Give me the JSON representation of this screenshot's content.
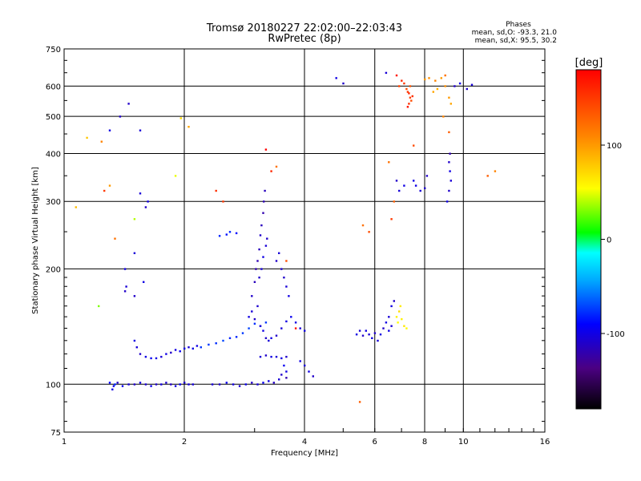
{
  "chart_data": {
    "type": "scatter",
    "title": "Tromsø 20180227 22:02:00–22:03:43",
    "subtitle": "RwPretec (8p)",
    "xlabel": "Frequency [MHz]",
    "ylabel": "Stationary phase Virtual Height [km]",
    "x_scale": "log",
    "y_scale": "log",
    "xlim": [
      1,
      16
    ],
    "ylim": [
      75,
      750
    ],
    "x_ticks": [
      1,
      2,
      4,
      6,
      8,
      10,
      16
    ],
    "y_ticks": [
      75,
      100,
      200,
      300,
      400,
      500,
      600,
      750
    ],
    "x_tick_labels": [
      "1",
      "2",
      "4",
      "6",
      "8",
      "10",
      "16"
    ],
    "y_tick_labels": [
      "75",
      "100",
      "200",
      "300",
      "400",
      "500",
      "600",
      "750"
    ],
    "grid": true,
    "stats": {
      "header": "Phases",
      "line_o": "mean, sd,O:  -93.3, 21.0",
      "line_x": "mean, sd,X:  95.5, 30.2"
    },
    "colorbar": {
      "label": "[deg]",
      "range": [
        -180,
        180
      ],
      "ticks": [
        100,
        0,
        -100
      ],
      "tick_labels": [
        "100",
        "0",
        "-100"
      ]
    },
    "series": [
      {
        "points": [
          [
            1.33,
            99,
            -100
          ],
          [
            1.36,
            101,
            -110
          ],
          [
            1.4,
            99,
            -95
          ],
          [
            1.45,
            100,
            -105
          ],
          [
            1.5,
            100,
            -110
          ],
          [
            1.55,
            101,
            -100
          ],
          [
            1.6,
            100,
            -108
          ],
          [
            1.65,
            99,
            -96
          ],
          [
            1.7,
            100,
            -110
          ],
          [
            1.75,
            100,
            -102
          ],
          [
            1.8,
            101,
            -106
          ],
          [
            1.85,
            100,
            -112
          ],
          [
            1.9,
            99,
            -100
          ],
          [
            1.95,
            100,
            -95
          ],
          [
            2.0,
            101,
            -108
          ],
          [
            2.05,
            100,
            -102
          ],
          [
            2.1,
            100,
            -104
          ],
          [
            1.3,
            101,
            -90
          ],
          [
            1.32,
            97,
            -100
          ],
          [
            1.34,
            100,
            -80
          ],
          [
            2.35,
            100,
            -104
          ],
          [
            2.45,
            100,
            -110
          ],
          [
            2.55,
            101,
            -96
          ],
          [
            2.65,
            100,
            -102
          ],
          [
            2.75,
            99,
            -105
          ],
          [
            2.85,
            100,
            -98
          ],
          [
            2.95,
            101,
            -110
          ],
          [
            3.05,
            100,
            -103
          ],
          [
            3.15,
            101,
            -95
          ],
          [
            3.25,
            102,
            -100
          ],
          [
            3.35,
            101,
            -112
          ],
          [
            3.45,
            103,
            -105
          ],
          [
            3.5,
            106,
            -110
          ],
          [
            3.6,
            108,
            -100
          ],
          [
            3.55,
            112,
            -95
          ],
          [
            3.6,
            104,
            -120
          ],
          [
            1.5,
            130,
            -100
          ],
          [
            1.52,
            125,
            -105
          ],
          [
            1.55,
            120,
            -110
          ],
          [
            1.6,
            118,
            -100
          ],
          [
            1.65,
            117,
            -95
          ],
          [
            1.7,
            117,
            -100
          ],
          [
            1.75,
            118,
            -105
          ],
          [
            1.8,
            120,
            -100
          ],
          [
            1.85,
            121,
            -110
          ],
          [
            1.9,
            123,
            -100
          ],
          [
            1.95,
            122,
            -95
          ],
          [
            2.0,
            124,
            -100
          ],
          [
            2.05,
            125,
            -105
          ],
          [
            2.1,
            124,
            -100
          ],
          [
            2.15,
            126,
            -100
          ],
          [
            2.2,
            125,
            -75
          ],
          [
            2.3,
            127,
            -75
          ],
          [
            2.4,
            128,
            -78
          ],
          [
            2.5,
            130,
            -70
          ],
          [
            2.6,
            132,
            -80
          ],
          [
            2.7,
            133,
            -80
          ],
          [
            2.8,
            136,
            -75
          ],
          [
            2.9,
            140,
            -72
          ],
          [
            3.0,
            144,
            -78
          ],
          [
            3.1,
            142,
            -80
          ],
          [
            3.2,
            145,
            -75
          ],
          [
            2.9,
            150,
            -100
          ],
          [
            2.95,
            155,
            -105
          ],
          [
            3.0,
            148,
            -110
          ],
          [
            3.05,
            160,
            -108
          ],
          [
            3.1,
            142,
            -105
          ],
          [
            3.15,
            138,
            -100
          ],
          [
            3.2,
            132,
            -110
          ],
          [
            3.25,
            130,
            -105
          ],
          [
            3.3,
            132,
            -100
          ],
          [
            3.4,
            134,
            -110
          ],
          [
            3.5,
            140,
            -105
          ],
          [
            3.6,
            146,
            -100
          ],
          [
            3.7,
            150,
            -95
          ],
          [
            3.8,
            145,
            -100
          ],
          [
            3.9,
            140,
            -105
          ],
          [
            4.0,
            138,
            -100
          ],
          [
            2.95,
            170,
            -110
          ],
          [
            3.0,
            185,
            -115
          ],
          [
            3.02,
            200,
            -120
          ],
          [
            3.05,
            210,
            -118
          ],
          [
            3.08,
            225,
            -115
          ],
          [
            3.1,
            245,
            -110
          ],
          [
            3.12,
            260,
            -115
          ],
          [
            3.15,
            280,
            -120
          ],
          [
            3.16,
            300,
            -118
          ],
          [
            3.18,
            320,
            -115
          ],
          [
            3.12,
            200,
            -105
          ],
          [
            3.08,
            190,
            -110
          ],
          [
            3.15,
            215,
            -100
          ],
          [
            3.2,
            230,
            -105
          ],
          [
            3.22,
            240,
            -110
          ],
          [
            3.4,
            210,
            -110
          ],
          [
            3.45,
            220,
            -105
          ],
          [
            3.5,
            200,
            -108
          ],
          [
            3.55,
            190,
            -110
          ],
          [
            3.6,
            180,
            -105
          ],
          [
            3.65,
            170,
            -100
          ],
          [
            3.1,
            118,
            -105
          ],
          [
            3.2,
            119,
            -110
          ],
          [
            3.3,
            118,
            -100
          ],
          [
            3.4,
            118,
            -105
          ],
          [
            3.5,
            117,
            -100
          ],
          [
            3.6,
            118,
            -110
          ],
          [
            2.45,
            244,
            -80
          ],
          [
            2.55,
            246,
            -85
          ],
          [
            2.6,
            250,
            -80
          ],
          [
            2.7,
            248,
            -90
          ],
          [
            3.9,
            115,
            -100
          ],
          [
            4.0,
            112,
            -105
          ],
          [
            4.1,
            108,
            -100
          ],
          [
            4.2,
            105,
            -110
          ],
          [
            5.4,
            135,
            -100
          ],
          [
            5.5,
            138,
            -105
          ],
          [
            5.6,
            134,
            -110
          ],
          [
            5.7,
            138,
            -100
          ],
          [
            5.8,
            135,
            -105
          ],
          [
            5.9,
            132,
            -100
          ],
          [
            6.0,
            136,
            -110
          ],
          [
            6.1,
            130,
            -105
          ],
          [
            6.2,
            135,
            -100
          ],
          [
            6.3,
            140,
            -110
          ],
          [
            6.4,
            145,
            -100
          ],
          [
            6.5,
            150,
            -105
          ],
          [
            6.6,
            160,
            -100
          ],
          [
            6.7,
            165,
            -110
          ],
          [
            6.5,
            138,
            -100
          ],
          [
            6.6,
            142,
            -105
          ],
          [
            6.8,
            150,
            60
          ],
          [
            6.85,
            145,
            55
          ],
          [
            6.9,
            155,
            70
          ],
          [
            7.0,
            148,
            60
          ],
          [
            7.1,
            142,
            65
          ],
          [
            7.2,
            140,
            55
          ],
          [
            6.95,
            160,
            62
          ],
          [
            7.2,
            590,
            140
          ],
          [
            7.25,
            580,
            150
          ],
          [
            7.3,
            575,
            160
          ],
          [
            7.35,
            560,
            145
          ],
          [
            7.3,
            540,
            155
          ],
          [
            7.25,
            530,
            170
          ],
          [
            7.4,
            550,
            140
          ],
          [
            7.35,
            600,
            135
          ],
          [
            7.1,
            610,
            150
          ],
          [
            7.0,
            620,
            160
          ],
          [
            6.8,
            640,
            170
          ],
          [
            6.9,
            600,
            145
          ],
          [
            7.45,
            565,
            155
          ],
          [
            8.0,
            625,
            100
          ],
          [
            8.2,
            630,
            105
          ],
          [
            8.5,
            620,
            110
          ],
          [
            8.8,
            630,
            100
          ],
          [
            9.0,
            600,
            105
          ],
          [
            8.4,
            580,
            95
          ],
          [
            8.6,
            590,
            90
          ],
          [
            9.2,
            560,
            100
          ],
          [
            9.3,
            540,
            95
          ],
          [
            9.0,
            640,
            120
          ],
          [
            9.2,
            380,
            -110
          ],
          [
            9.25,
            360,
            -100
          ],
          [
            9.3,
            340,
            -105
          ],
          [
            9.2,
            320,
            -110
          ],
          [
            9.1,
            300,
            -100
          ],
          [
            9.25,
            400,
            -120
          ],
          [
            7.6,
            330,
            -100
          ],
          [
            7.8,
            320,
            -105
          ],
          [
            8.0,
            325,
            -110
          ],
          [
            7.5,
            340,
            -100
          ],
          [
            8.1,
            350,
            -110
          ],
          [
            6.8,
            340,
            -110
          ],
          [
            7.1,
            330,
            -100
          ],
          [
            6.9,
            320,
            -105
          ],
          [
            9.5,
            600,
            -110
          ],
          [
            9.8,
            610,
            -100
          ],
          [
            10.5,
            605,
            -105
          ],
          [
            10.2,
            590,
            -110
          ],
          [
            4.8,
            630,
            -100
          ],
          [
            5.0,
            610,
            -110
          ],
          [
            6.4,
            650,
            -105
          ],
          [
            1.45,
            540,
            -110
          ],
          [
            1.3,
            460,
            -100
          ],
          [
            1.55,
            460,
            -105
          ],
          [
            1.38,
            500,
            -110
          ],
          [
            1.62,
            300,
            -100
          ],
          [
            1.55,
            315,
            -105
          ],
          [
            1.6,
            290,
            -110
          ],
          [
            1.42,
            200,
            -100
          ],
          [
            1.43,
            180,
            -105
          ],
          [
            1.5,
            170,
            -110
          ],
          [
            1.58,
            185,
            -100
          ],
          [
            1.5,
            220,
            -105
          ],
          [
            1.42,
            175,
            -110
          ]
        ]
      },
      {
        "points": [
          [
            1.22,
            160,
            30
          ],
          [
            1.5,
            270,
            40
          ],
          [
            1.9,
            350,
            50
          ],
          [
            1.96,
            495,
            70
          ],
          [
            2.05,
            470,
            95
          ],
          [
            1.07,
            290,
            85
          ],
          [
            1.14,
            440,
            80
          ],
          [
            1.24,
            430,
            110
          ],
          [
            1.26,
            320,
            150
          ],
          [
            1.3,
            330,
            100
          ],
          [
            1.34,
            240,
            120
          ],
          [
            2.4,
            320,
            155
          ],
          [
            2.5,
            300,
            150
          ],
          [
            3.3,
            360,
            160
          ],
          [
            3.4,
            370,
            120
          ],
          [
            3.6,
            210,
            140
          ],
          [
            3.8,
            140,
            170
          ],
          [
            3.2,
            410,
            180
          ],
          [
            5.5,
            90,
            130
          ],
          [
            5.6,
            260,
            120
          ],
          [
            5.8,
            250,
            140
          ],
          [
            6.6,
            270,
            150
          ],
          [
            6.7,
            300,
            130
          ],
          [
            11.5,
            350,
            130
          ],
          [
            12.0,
            360,
            110
          ],
          [
            7.5,
            420,
            140
          ],
          [
            8.9,
            500,
            110
          ],
          [
            9.2,
            455,
            130
          ],
          [
            6.5,
            380,
            120
          ]
        ]
      }
    ]
  }
}
